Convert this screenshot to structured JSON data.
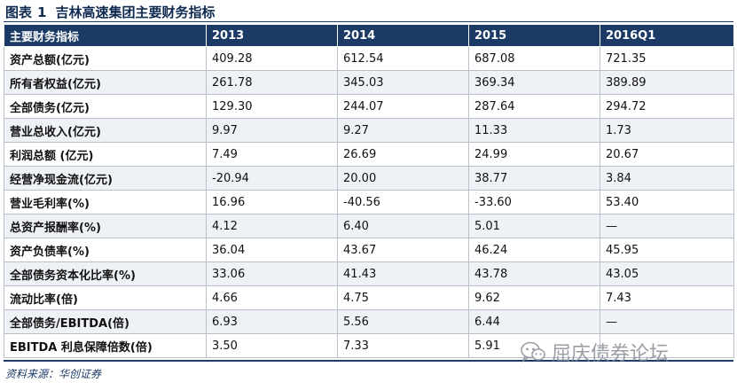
{
  "figure": {
    "label": "图表",
    "number": "1",
    "title": "吉林高速集团主要财务指标"
  },
  "table": {
    "headers": [
      "主要财务指标",
      "2013",
      "2014",
      "2015",
      "2016Q1"
    ],
    "rows": [
      [
        "资产总额(亿元)",
        "409.28",
        "612.54",
        "687.08",
        "721.35"
      ],
      [
        "所有者权益(亿元)",
        "261.78",
        "345.03",
        "369.34",
        "389.89"
      ],
      [
        "全部债务(亿元)",
        "129.30",
        "244.07",
        "287.64",
        "294.72"
      ],
      [
        "营业总收入(亿元)",
        "9.97",
        "9.27",
        "11.33",
        "1.73"
      ],
      [
        "利润总额 (亿元)",
        "7.49",
        "26.69",
        "24.99",
        "20.67"
      ],
      [
        "经营净现金流(亿元)",
        "-20.94",
        "20.00",
        "38.77",
        "3.84"
      ],
      [
        "营业毛利率(%)",
        "16.96",
        "-40.56",
        "-33.60",
        "53.40"
      ],
      [
        "总资产报酬率(%)",
        "4.12",
        "6.40",
        "5.01",
        "—"
      ],
      [
        "资产负债率(%)",
        "36.04",
        "43.67",
        "46.24",
        "45.95"
      ],
      [
        "全部债务资本化比率(%)",
        "33.06",
        "41.43",
        "43.78",
        "43.05"
      ],
      [
        "流动比率(倍)",
        "4.66",
        "4.75",
        "9.62",
        "7.43"
      ],
      [
        "全部债务/EBITDA(倍)",
        "6.93",
        "5.56",
        "6.44",
        "—"
      ],
      [
        "EBITDA 利息保障倍数(倍)",
        "3.50",
        "7.33",
        "5.91",
        ""
      ]
    ]
  },
  "source": "资料来源：华创证券",
  "watermark": {
    "text": "屈庆债券论坛",
    "icon": "wechat-icon"
  }
}
